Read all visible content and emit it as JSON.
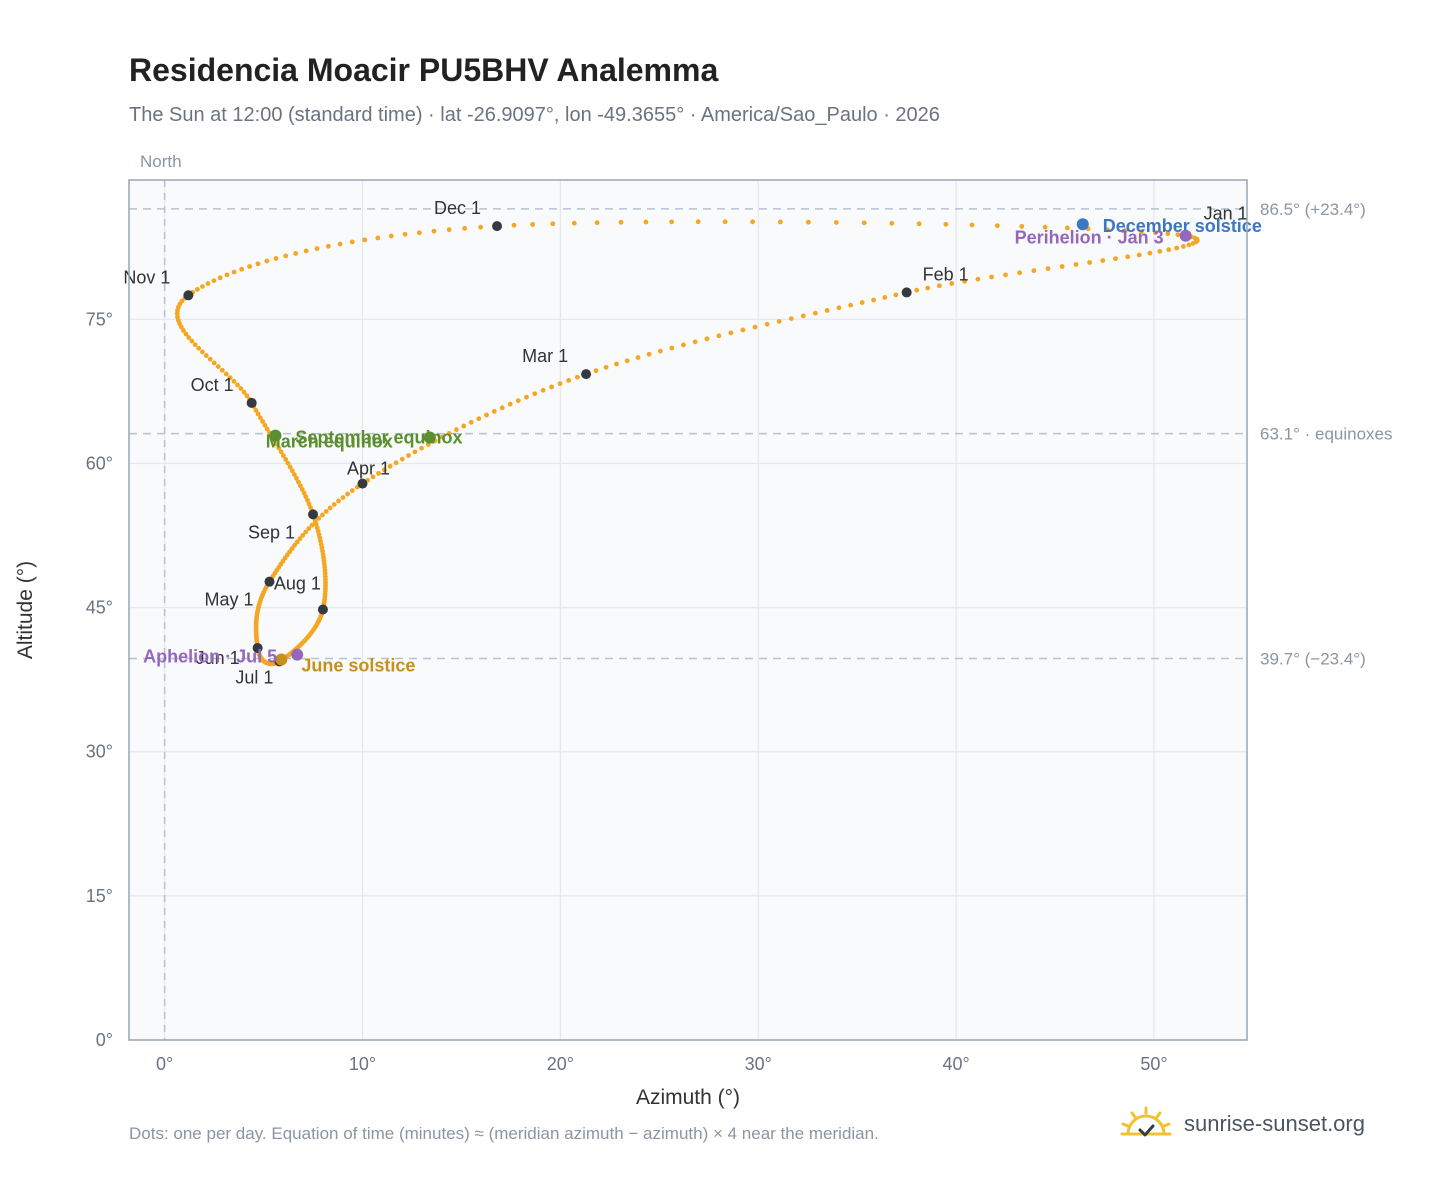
{
  "title": "Residencia Moacir PU5BHV Analemma",
  "subtitle": "The Sun at 12:00 (standard time) · lat -26.9097°, lon -49.3655° · America/Sao_Paulo · 2026",
  "footnote": "Dots: one per day. Equation of time (minutes) ≈ (meridian azimuth − azimuth) × 4 near the meridian.",
  "brand": {
    "name": "sunrise-sunset.org",
    "icon": "sun-check-icon"
  },
  "colors": {
    "path": "#f5a623",
    "month_marker": "#333a40",
    "equinox": "#5a8f2e",
    "december_solstice": "#3a78c2",
    "june_solstice": "#c8901a",
    "apsis": "#9467bd",
    "grid": "#e3e8ee",
    "plot_bg": "#f8fafc",
    "reference": "#b7c2cf",
    "axis_text": "#6b7280"
  },
  "chart_data": {
    "type": "scatter",
    "xlabel": "Azimuth (°)",
    "ylabel": "Altitude (°)",
    "xlim": [
      -1.8,
      54.7
    ],
    "ylim": [
      0,
      89.5
    ],
    "x_ticks": [
      0,
      10,
      20,
      30,
      40,
      50
    ],
    "x_tick_labels": [
      "0°",
      "10°",
      "20°",
      "30°",
      "40°",
      "50°"
    ],
    "y_ticks": [
      0,
      15,
      30,
      45,
      60,
      75
    ],
    "y_tick_labels": [
      "0°",
      "15°",
      "30°",
      "45°",
      "60°",
      "75°"
    ],
    "grid": true,
    "north_label": "North",
    "north_azimuth": 0,
    "reference_lines": [
      {
        "altitude": 86.5,
        "label": "86.5° (+23.4°)"
      },
      {
        "altitude": 63.1,
        "label": "63.1° · equinoxes"
      },
      {
        "altitude": 39.7,
        "label": "39.7° (−23.4°)"
      }
    ],
    "month_markers": [
      {
        "label": "Jan 1",
        "az": 51.6,
        "alt": 83.7
      },
      {
        "label": "Feb 1",
        "az": 37.5,
        "alt": 77.8
      },
      {
        "label": "Mar 1",
        "az": 21.3,
        "alt": 69.3
      },
      {
        "label": "Apr 1",
        "az": 10.0,
        "alt": 57.9
      },
      {
        "label": "May 1",
        "az": 5.3,
        "alt": 47.7
      },
      {
        "label": "Jun 1",
        "az": 4.7,
        "alt": 40.8
      },
      {
        "label": "Jul 1",
        "az": 5.8,
        "alt": 39.4
      },
      {
        "label": "Aug 1",
        "az": 8.0,
        "alt": 44.8
      },
      {
        "label": "Sep 1",
        "az": 7.5,
        "alt": 54.7
      },
      {
        "label": "Oct 1",
        "az": 4.4,
        "alt": 66.3
      },
      {
        "label": "Nov 1",
        "az": 1.2,
        "alt": 77.5
      },
      {
        "label": "Dec 1",
        "az": 16.8,
        "alt": 84.7
      }
    ],
    "events": [
      {
        "label": "March equinox",
        "az": 13.4,
        "alt": 62.7,
        "kind": "equinox"
      },
      {
        "label": "September equinox",
        "az": 5.6,
        "alt": 62.9,
        "kind": "equinox"
      },
      {
        "label": "June solstice",
        "az": 5.9,
        "alt": 39.6,
        "kind": "june_solstice"
      },
      {
        "label": "December solstice",
        "az": 46.4,
        "alt": 84.9,
        "kind": "december_solstice"
      },
      {
        "label": "Perihelion · Jan 3",
        "az": 51.6,
        "alt": 83.7,
        "kind": "apsis"
      },
      {
        "label": "Aphelion · Jul 5",
        "az": 6.7,
        "alt": 40.1,
        "kind": "apsis"
      }
    ]
  }
}
